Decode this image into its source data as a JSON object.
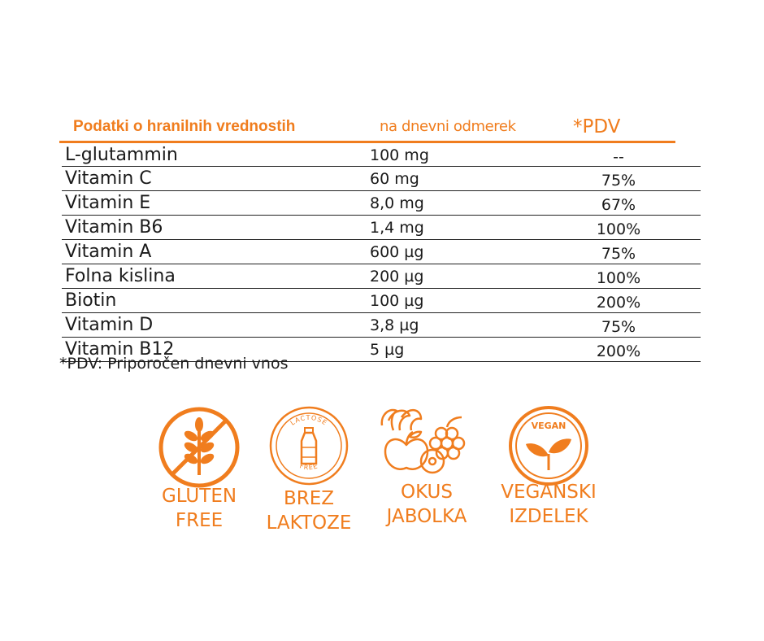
{
  "header": {
    "title": "Podatki o hranilnih vrednostih",
    "dose": "na dnevni odmerek",
    "pdv": "*PDV"
  },
  "rows": [
    {
      "name": "L-glutammin",
      "value": "100 mg",
      "pdv": "--"
    },
    {
      "name": "Vitamin C",
      "value": "60 mg",
      "pdv": "75%"
    },
    {
      "name": "Vitamin E",
      "value": "8,0 mg",
      "pdv": "67%"
    },
    {
      "name": "Vitamin B6",
      "value": "1,4 mg",
      "pdv": "100%"
    },
    {
      "name": "Vitamin A",
      "value": "600 µg",
      "pdv": "75%"
    },
    {
      "name": "Folna kislina",
      "value": "200 µg",
      "pdv": "100%"
    },
    {
      "name": "Biotin",
      "value": "100 µg",
      "pdv": "200%"
    },
    {
      "name": "Vitamin D",
      "value": "3,8 µg",
      "pdv": "75%"
    },
    {
      "name": "Vitamin B12",
      "value": "5 µg",
      "pdv": "200%"
    }
  ],
  "footnote": "*PDV: Priporočen dnevni vnos",
  "badges": {
    "gluten": {
      "icon": "wheat-crossed-icon",
      "line1": "GLUTEN",
      "line2": "FREE"
    },
    "lactose": {
      "icon": "milk-bottle-icon",
      "ring_top": "LACTOSE",
      "ring_bottom": "FREE",
      "line1": "BREZ",
      "line2": "LAKTOZE"
    },
    "apple": {
      "icon": "fruit-basket-icon",
      "line1": "OKUS",
      "line2": "JABOLKA"
    },
    "vegan": {
      "icon": "leaf-sprout-icon",
      "ring_text": "VEGAN",
      "line1": "VEGANSKI",
      "line2": "IZDELEK"
    }
  },
  "colors": {
    "accent": "#f07d1e",
    "text": "#1a1a1a"
  }
}
